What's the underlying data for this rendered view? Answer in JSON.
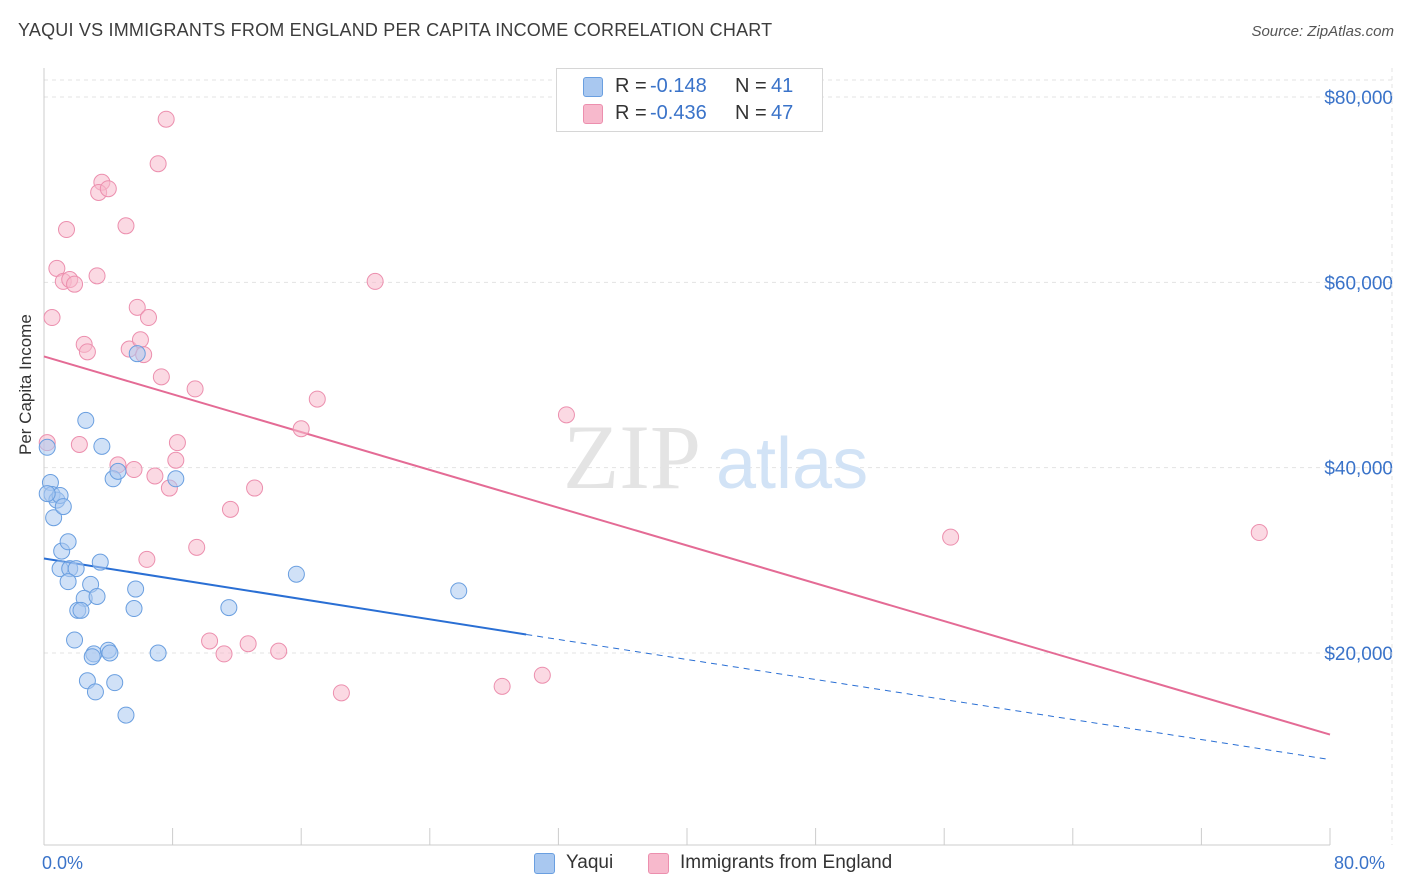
{
  "header": {
    "title": "YAQUI VS IMMIGRANTS FROM ENGLAND PER CAPITA INCOME CORRELATION CHART",
    "source": "Source: ZipAtlas.com"
  },
  "watermark": {
    "zip": "ZIP",
    "atlas": "atlas"
  },
  "legend": {
    "r_label": "R =",
    "n_label": "N =",
    "rows": [
      {
        "series": "Yaqui",
        "r": "-0.148",
        "n": "41",
        "color": "#a9c8f0"
      },
      {
        "series": "Immigrants from England",
        "r": "-0.436",
        "n": "47",
        "color": "#f7b9cc"
      }
    ]
  },
  "bottom_legend": [
    {
      "label": "Yaqui",
      "color": "#a9c8f0"
    },
    {
      "label": "Immigrants from England",
      "color": "#f7b9cc"
    }
  ],
  "chart_data": {
    "type": "scatter",
    "title": "YAQUI VS IMMIGRANTS FROM ENGLAND PER CAPITA INCOME CORRELATION CHART",
    "xlabel": "",
    "ylabel": "Per Capita Income",
    "xlim": [
      0,
      80
    ],
    "ylim": [
      0,
      80000
    ],
    "x_tick_labels": [
      "0.0%",
      "80.0%"
    ],
    "y_ticks": [
      20000,
      40000,
      60000,
      80000
    ],
    "y_tick_labels": [
      "$20,000",
      "$40,000",
      "$60,000",
      "$80,000"
    ],
    "grid": true,
    "series": [
      {
        "name": "Yaqui",
        "color": "#a9c8f0",
        "line_color": "#2a6fd4",
        "trend": {
          "x0": 0,
          "y0": 30200,
          "x1": 30,
          "y1": 22000,
          "dash_to_x": 80,
          "dash_to_y": 8500
        },
        "points": [
          [
            0.2,
            42200
          ],
          [
            0.4,
            38400
          ],
          [
            0.5,
            37100
          ],
          [
            0.6,
            34600
          ],
          [
            0.8,
            36500
          ],
          [
            1.0,
            37000
          ],
          [
            1.2,
            35800
          ],
          [
            1.1,
            31000
          ],
          [
            1.5,
            32000
          ],
          [
            1.0,
            29100
          ],
          [
            1.6,
            29100
          ],
          [
            2.0,
            29100
          ],
          [
            1.5,
            27700
          ],
          [
            2.9,
            27400
          ],
          [
            3.5,
            29800
          ],
          [
            4.3,
            38800
          ],
          [
            2.6,
            45100
          ],
          [
            3.6,
            42300
          ],
          [
            4.6,
            39600
          ],
          [
            5.7,
            26900
          ],
          [
            2.5,
            25900
          ],
          [
            3.3,
            26100
          ],
          [
            2.1,
            24600
          ],
          [
            2.3,
            24600
          ],
          [
            5.6,
            24800
          ],
          [
            1.9,
            21400
          ],
          [
            3.1,
            19900
          ],
          [
            3.0,
            19600
          ],
          [
            4.0,
            20300
          ],
          [
            4.1,
            20000
          ],
          [
            7.1,
            20000
          ],
          [
            2.7,
            17000
          ],
          [
            4.4,
            16800
          ],
          [
            3.2,
            15800
          ],
          [
            5.1,
            13300
          ],
          [
            5.8,
            52300
          ],
          [
            8.2,
            38800
          ],
          [
            11.5,
            24900
          ],
          [
            15.7,
            28500
          ],
          [
            25.8,
            26700
          ],
          [
            0.2,
            37200
          ]
        ]
      },
      {
        "name": "Immigrants from England",
        "color": "#f7b9cc",
        "line_color": "#e46b95",
        "trend": {
          "x0": 0,
          "y0": 52000,
          "x1": 80,
          "y1": 11200
        },
        "points": [
          [
            0.2,
            42700
          ],
          [
            0.5,
            56200
          ],
          [
            0.8,
            61500
          ],
          [
            1.2,
            60100
          ],
          [
            1.4,
            65700
          ],
          [
            1.6,
            60300
          ],
          [
            1.9,
            59800
          ],
          [
            2.2,
            42500
          ],
          [
            2.5,
            53300
          ],
          [
            2.7,
            52500
          ],
          [
            3.3,
            60700
          ],
          [
            3.6,
            70800
          ],
          [
            3.4,
            69700
          ],
          [
            4.0,
            70100
          ],
          [
            5.1,
            66100
          ],
          [
            4.6,
            40300
          ],
          [
            5.3,
            52800
          ],
          [
            5.6,
            39800
          ],
          [
            5.8,
            57300
          ],
          [
            6.0,
            53800
          ],
          [
            6.2,
            52200
          ],
          [
            6.4,
            30100
          ],
          [
            6.5,
            56200
          ],
          [
            6.9,
            39100
          ],
          [
            7.1,
            72800
          ],
          [
            7.3,
            49800
          ],
          [
            7.6,
            77600
          ],
          [
            7.8,
            37800
          ],
          [
            8.2,
            40800
          ],
          [
            8.3,
            42700
          ],
          [
            9.4,
            48500
          ],
          [
            9.5,
            31400
          ],
          [
            10.3,
            21300
          ],
          [
            11.2,
            19900
          ],
          [
            11.6,
            35500
          ],
          [
            12.7,
            21000
          ],
          [
            13.1,
            37800
          ],
          [
            14.6,
            20200
          ],
          [
            16.0,
            44200
          ],
          [
            17.0,
            47400
          ],
          [
            18.5,
            15700
          ],
          [
            20.6,
            60100
          ],
          [
            28.5,
            16400
          ],
          [
            31.0,
            17600
          ],
          [
            32.5,
            45700
          ],
          [
            56.4,
            32500
          ],
          [
            75.6,
            33000
          ]
        ]
      }
    ]
  },
  "colors": {
    "grid": "#e3e3e3",
    "axis": "#cccccc",
    "tick_label": "#3a73c9",
    "yaqui": "#a9c8f0",
    "yaqui_stroke": "#6a9fe0",
    "england": "#f7b9cc",
    "england_stroke": "#ec8fae"
  }
}
